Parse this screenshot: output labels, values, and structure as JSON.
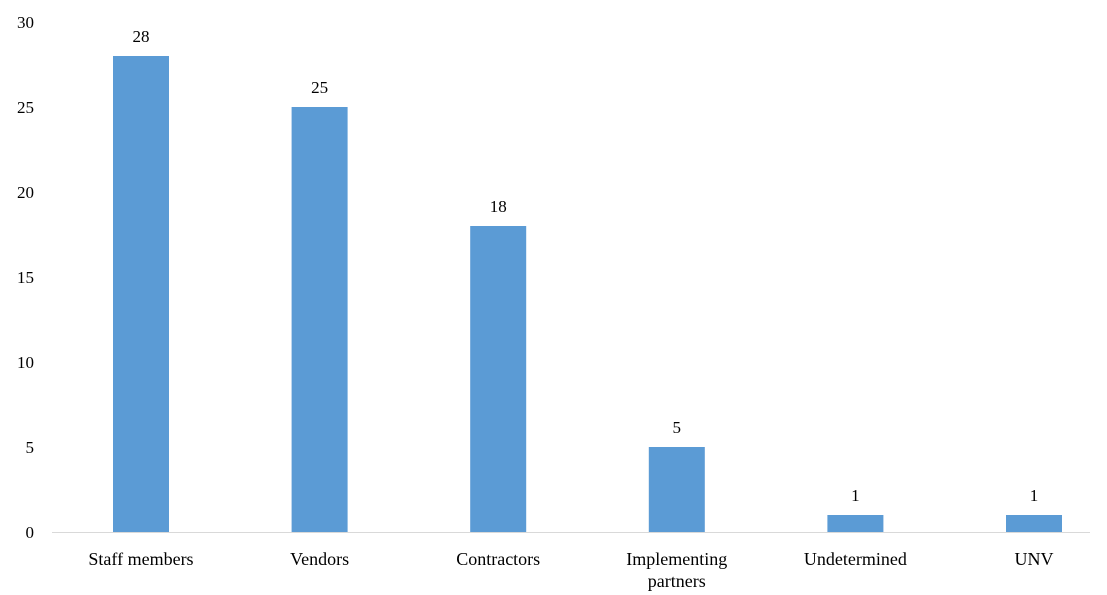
{
  "chart_data": {
    "type": "bar",
    "title": "",
    "xlabel": "",
    "ylabel": "",
    "categories": [
      "Staff members",
      "Vendors",
      "Contractors",
      "Implementing partners",
      "Undetermined",
      "UNV"
    ],
    "category_lines": [
      [
        "Staff members"
      ],
      [
        "Vendors"
      ],
      [
        "Contractors"
      ],
      [
        "Implementing",
        "partners"
      ],
      [
        "Undetermined"
      ],
      [
        "UNV"
      ]
    ],
    "values": [
      28,
      25,
      18,
      5,
      1,
      1
    ],
    "data_labels": [
      "28",
      "25",
      "18",
      "5",
      "1",
      "1"
    ],
    "y_ticks": [
      0,
      5,
      10,
      15,
      20,
      25,
      30
    ],
    "y_tick_labels": [
      "0",
      "5",
      "10",
      "15",
      "20",
      "25",
      "30"
    ],
    "ylim": [
      0,
      30
    ],
    "grid": false,
    "legend": "none",
    "bar_color": "#5B9BD5"
  }
}
